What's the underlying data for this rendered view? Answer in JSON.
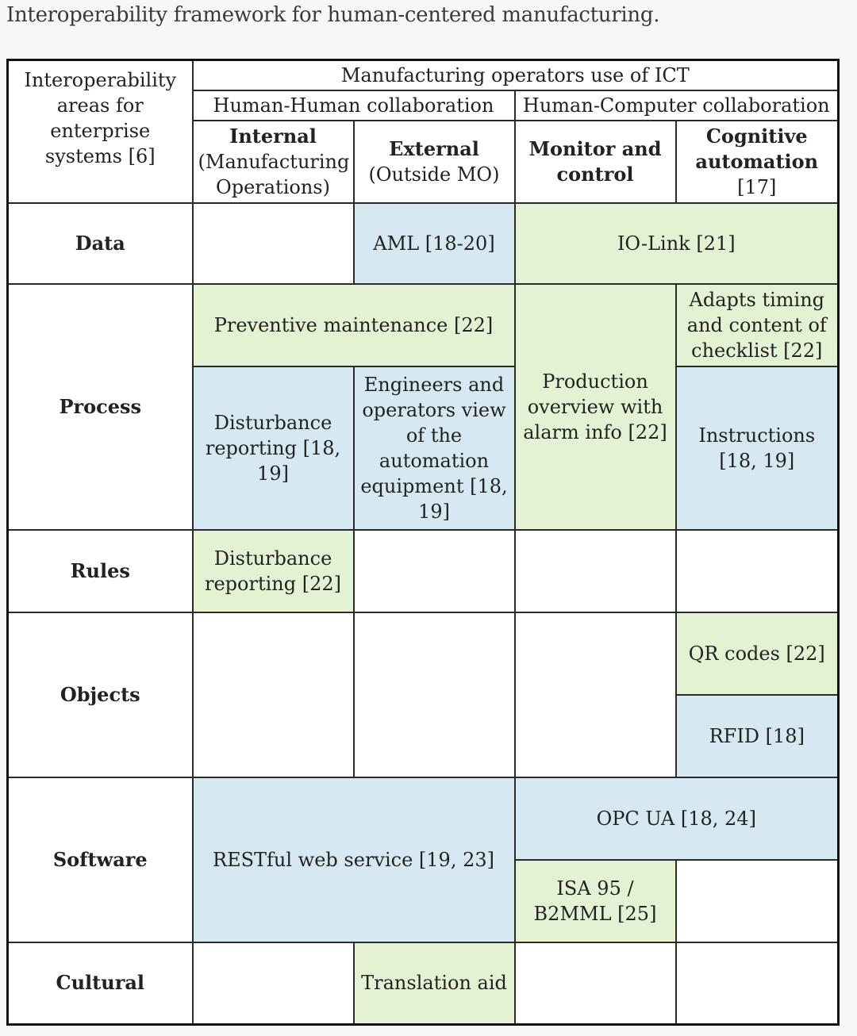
{
  "caption": "Interoperability framework for human-centered manufacturing.",
  "colors": {
    "green": "#e4f2d4",
    "blue": "#d6e9f3"
  },
  "table": {
    "corner": "Interoperability areas for enterprise systems [6]",
    "top_header": "Manufacturing operators use of ICT",
    "group_hh": "Human-Human collaboration",
    "group_hc": "Human-Computer collaboration",
    "columns": {
      "internal_title": "Internal",
      "internal_sub": "(Manufacturing Operations)",
      "external_title": "External",
      "external_sub": "(Outside MO)",
      "monitor": "Monitor and control",
      "cognitive_title": "Cognitive automation",
      "cognitive_sub": "[17]"
    },
    "rows": {
      "data": {
        "label": "Data",
        "aml": "AML [18-20]",
        "iolink": "IO-Link [21]"
      },
      "process": {
        "label": "Process",
        "preventive": "Preventive maintenance [22]",
        "adapts": "Adapts timing and content of checklist [22]",
        "production": "Production overview with alarm info [22]",
        "disturbance": "Disturbance reporting [18, 19]",
        "engineers": "Engineers and operators view of the automation equipment [18, 19]",
        "instructions": "Instructions [18, 19]"
      },
      "rules": {
        "label": "Rules",
        "disturbance": "Disturbance reporting [22]"
      },
      "objects": {
        "label": "Objects",
        "qr": "QR codes [22]",
        "rfid": "RFID [18]"
      },
      "software": {
        "label": "Software",
        "restful": "RESTful web service [19, 23]",
        "opcua": "OPC UA [18, 24]",
        "isa95": "ISA 95 / B2MML [25]"
      },
      "cultural": {
        "label": "Cultural",
        "translation": "Translation aid"
      }
    }
  }
}
